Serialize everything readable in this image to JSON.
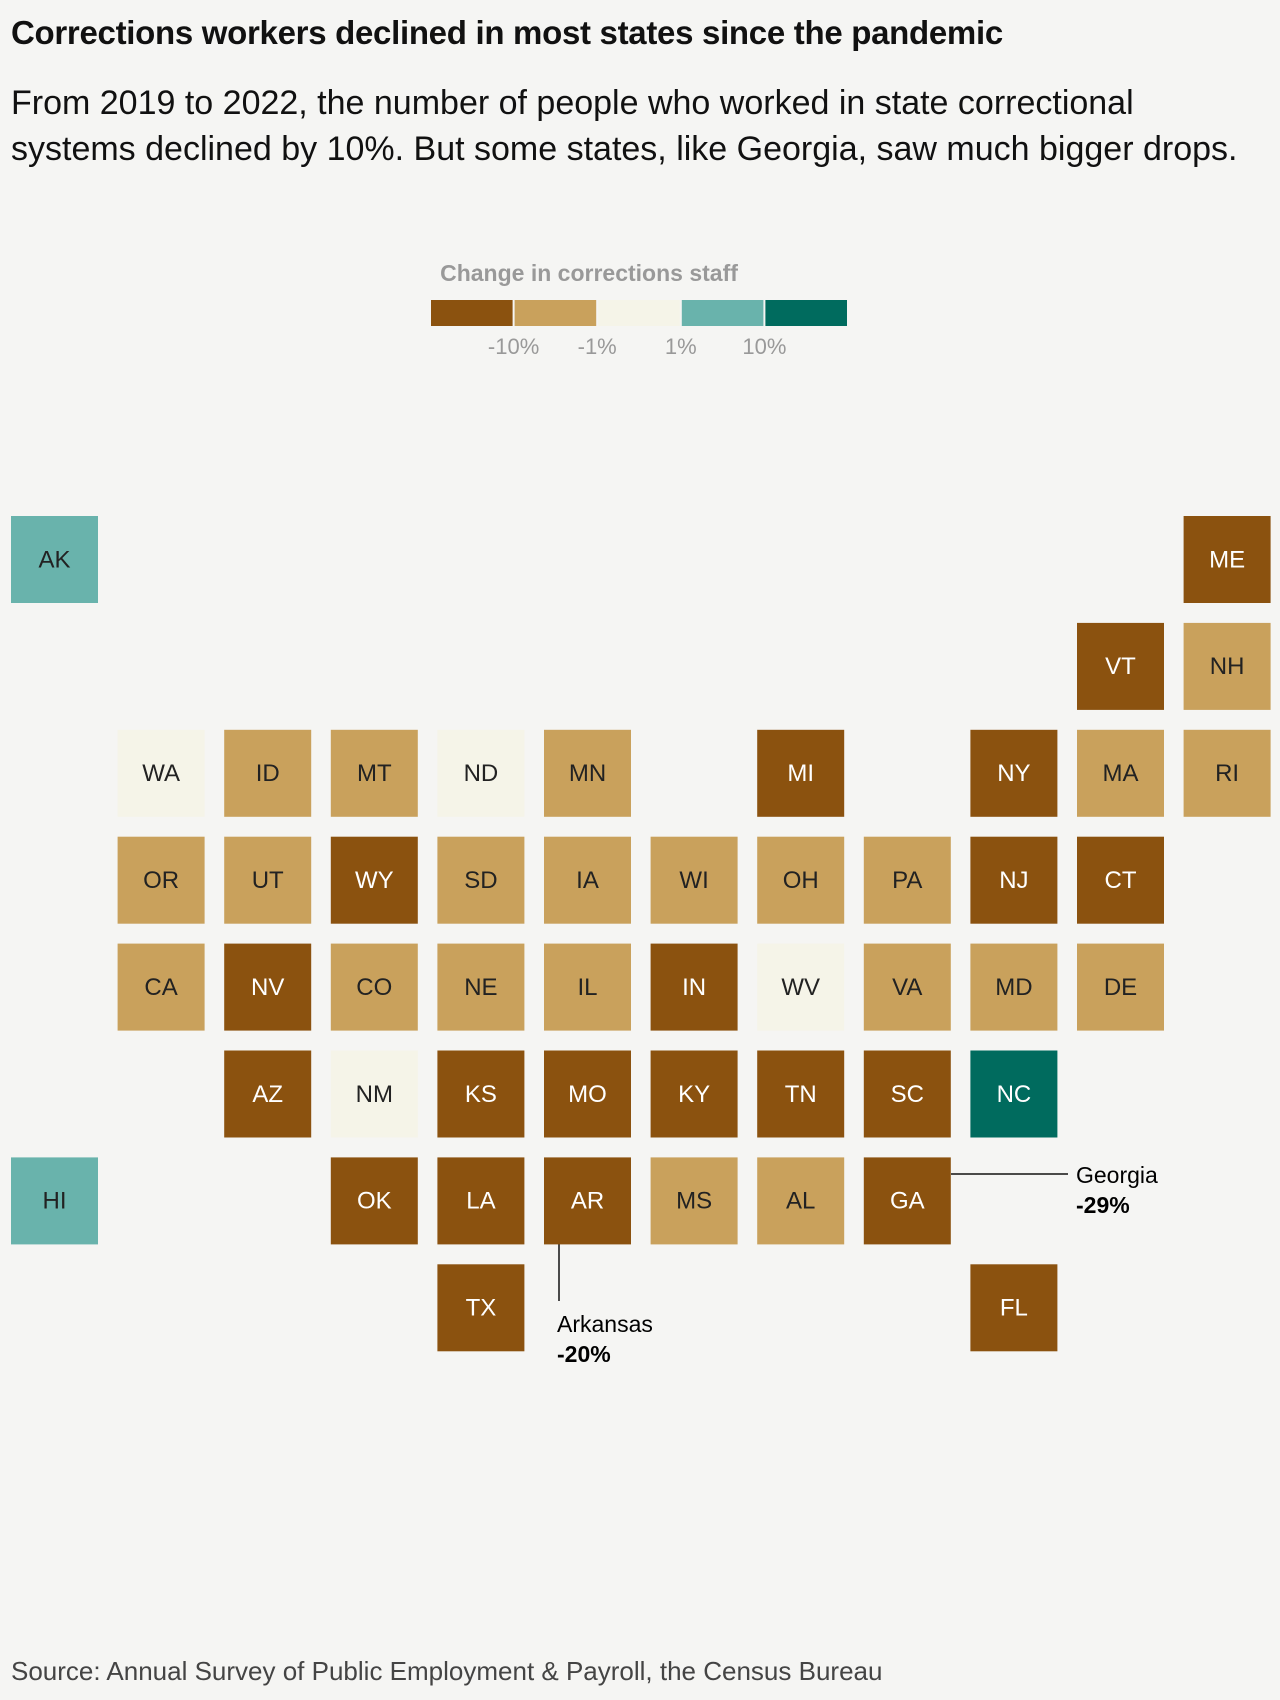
{
  "header": {
    "title": "Corrections workers declined in most states since the pandemic",
    "subtitle": "From 2019 to 2022, the number of people who worked in state correctional systems declined by 10%. But some states, like Georgia, saw much bigger drops."
  },
  "legend": {
    "title": "Change in corrections staff",
    "colors": [
      "#8b520f",
      "#c9a15c",
      "#f5f4e8",
      "#69b3ac",
      "#006b5e"
    ],
    "labels": [
      "-10%",
      "-1%",
      "1%",
      "10%"
    ]
  },
  "tiles": [
    {
      "label": "AK",
      "color": "#69b3ac"
    },
    {
      "label": "ME",
      "color": "#8b520f"
    },
    {
      "label": "VT",
      "color": "#8b520f"
    },
    {
      "label": "NH",
      "color": "#c9a15c"
    },
    {
      "label": "WA",
      "color": "#f5f4e8"
    },
    {
      "label": "ID",
      "color": "#c9a15c"
    },
    {
      "label": "MT",
      "color": "#c9a15c"
    },
    {
      "label": "ND",
      "color": "#f5f4e8"
    },
    {
      "label": "MN",
      "color": "#c9a15c"
    },
    {
      "label": "MI",
      "color": "#8b520f"
    },
    {
      "label": "NY",
      "color": "#8b520f"
    },
    {
      "label": "MA",
      "color": "#c9a15c"
    },
    {
      "label": "RI",
      "color": "#c9a15c"
    },
    {
      "label": "OR",
      "color": "#c9a15c"
    },
    {
      "label": "UT",
      "color": "#c9a15c"
    },
    {
      "label": "WY",
      "color": "#8b520f"
    },
    {
      "label": "SD",
      "color": "#c9a15c"
    },
    {
      "label": "IA",
      "color": "#c9a15c"
    },
    {
      "label": "WI",
      "color": "#c9a15c"
    },
    {
      "label": "OH",
      "color": "#c9a15c"
    },
    {
      "label": "PA",
      "color": "#c9a15c"
    },
    {
      "label": "NJ",
      "color": "#8b520f"
    },
    {
      "label": "CT",
      "color": "#8b520f"
    },
    {
      "label": "CA",
      "color": "#c9a15c"
    },
    {
      "label": "NV",
      "color": "#8b520f"
    },
    {
      "label": "CO",
      "color": "#c9a15c"
    },
    {
      "label": "NE",
      "color": "#c9a15c"
    },
    {
      "label": "IL",
      "color": "#c9a15c"
    },
    {
      "label": "IN",
      "color": "#8b520f"
    },
    {
      "label": "WV",
      "color": "#f5f4e8"
    },
    {
      "label": "VA",
      "color": "#c9a15c"
    },
    {
      "label": "MD",
      "color": "#c9a15c"
    },
    {
      "label": "DE",
      "color": "#c9a15c"
    },
    {
      "label": "AZ",
      "color": "#8b520f"
    },
    {
      "label": "NM",
      "color": "#f5f4e8"
    },
    {
      "label": "KS",
      "color": "#8b520f"
    },
    {
      "label": "MO",
      "color": "#8b520f"
    },
    {
      "label": "KY",
      "color": "#8b520f"
    },
    {
      "label": "TN",
      "color": "#8b520f"
    },
    {
      "label": "SC",
      "color": "#8b520f"
    },
    {
      "label": "NC",
      "color": "#006b5e"
    },
    {
      "label": "HI",
      "color": "#69b3ac"
    },
    {
      "label": "OK",
      "color": "#8b520f"
    },
    {
      "label": "LA",
      "color": "#8b520f"
    },
    {
      "label": "AR",
      "color": "#8b520f"
    },
    {
      "label": "MS",
      "color": "#c9a15c"
    },
    {
      "label": "AL",
      "color": "#c9a15c"
    },
    {
      "label": "GA",
      "color": "#8b520f"
    },
    {
      "label": "TX",
      "color": "#8b520f"
    },
    {
      "label": "FL",
      "color": "#8b520f"
    }
  ],
  "annotations": [
    {
      "name": "Georgia",
      "value": "-29%"
    },
    {
      "name": "Arkansas",
      "value": "-20%"
    }
  ],
  "source": "Source: Annual Survey of Public Employment & Payroll, the Census Bureau"
}
